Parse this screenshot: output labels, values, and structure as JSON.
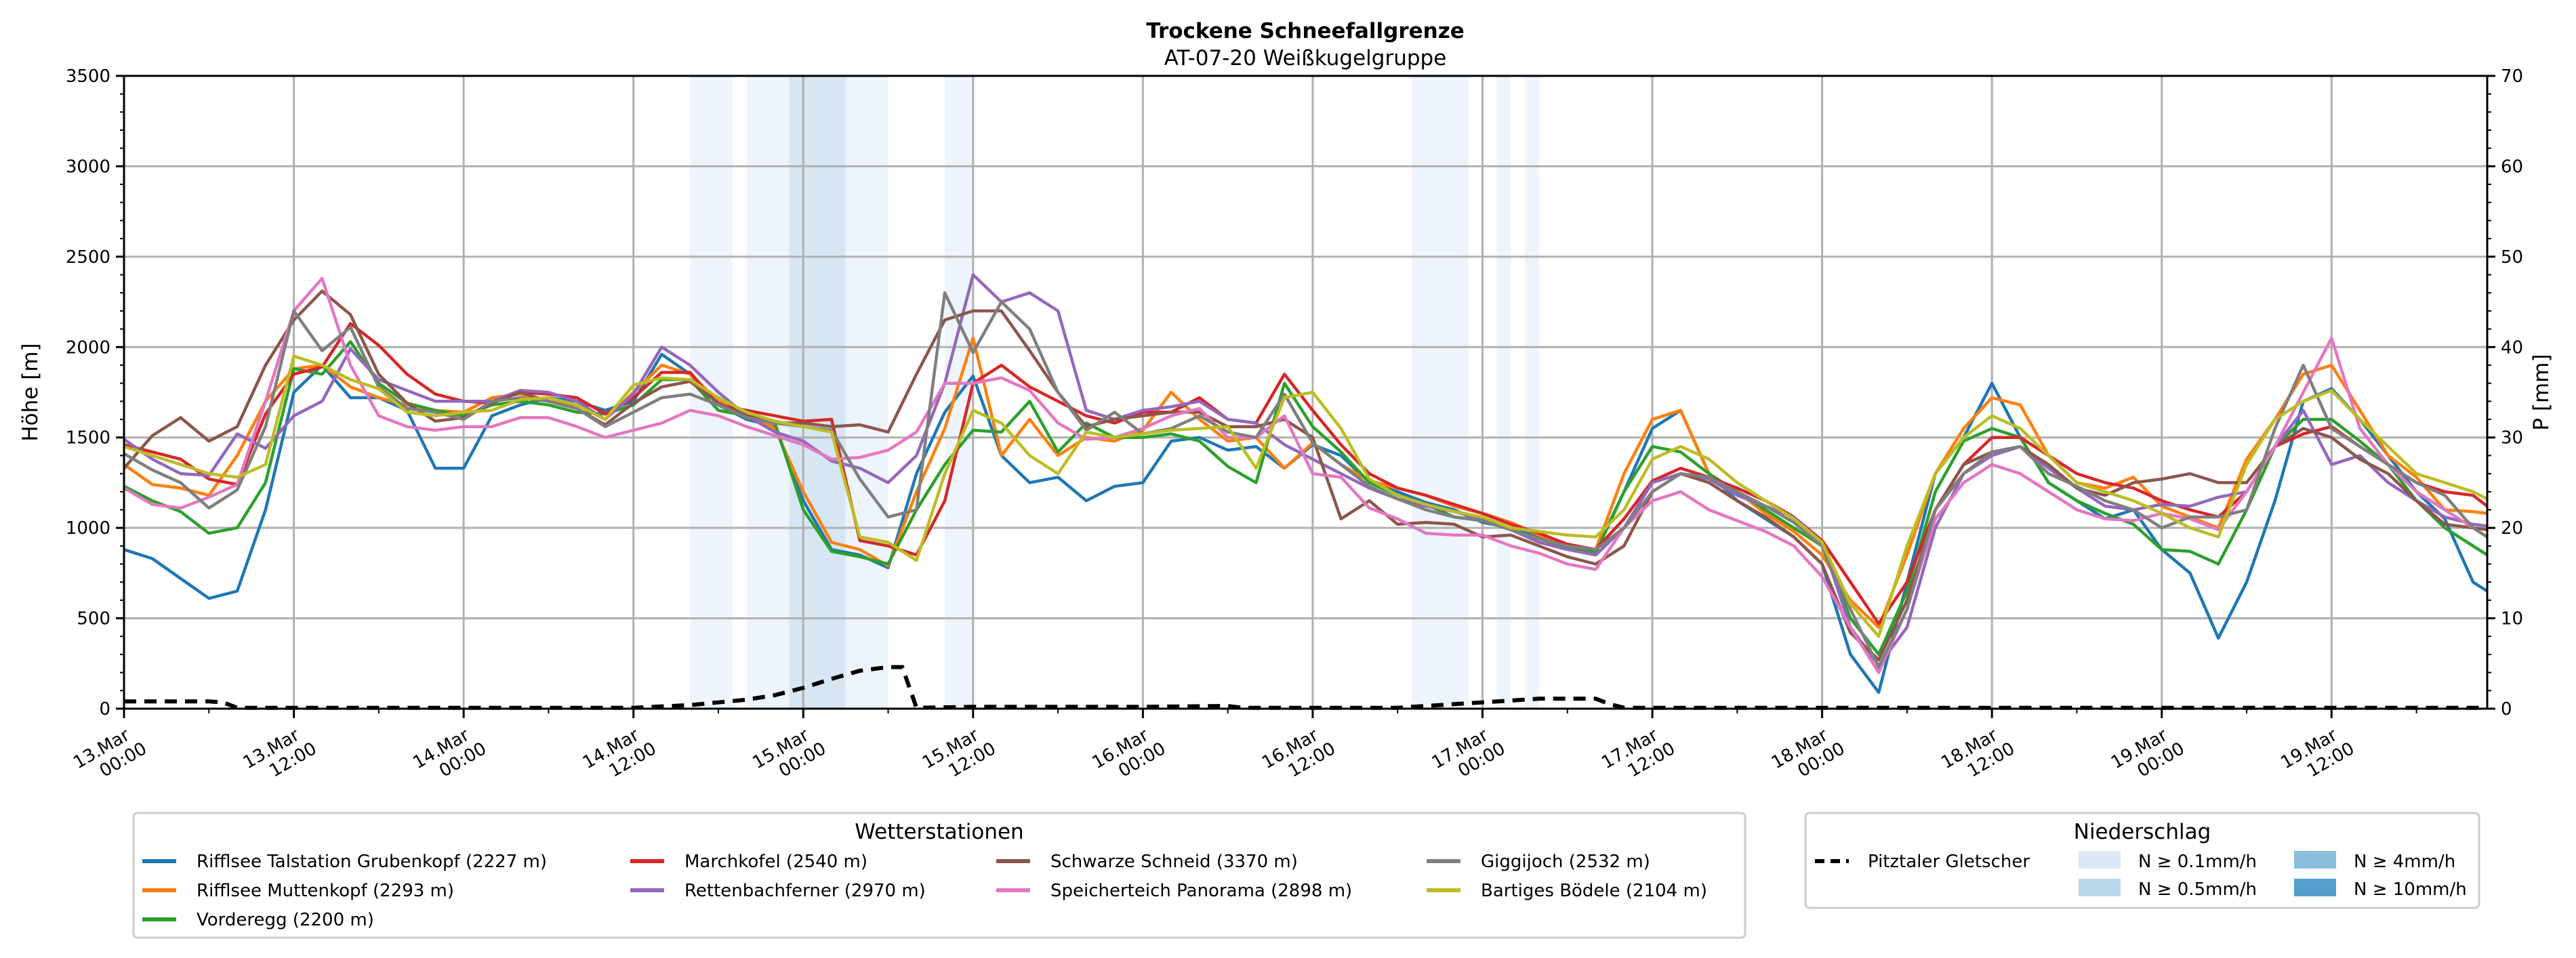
{
  "chart_data": {
    "type": "line",
    "title": "Trockene Schneefallgrenze",
    "subtitle": "AT-07-20 Weißkugelgruppe",
    "ylabel": "Höhe [m]",
    "y2label": "P [mm]",
    "ylim": [
      0,
      3500
    ],
    "y2lim": [
      0,
      70
    ],
    "yticks": [
      "0",
      "500",
      "1000",
      "1500",
      "2000",
      "2500",
      "3000",
      "3500"
    ],
    "y2ticks": [
      "0",
      "10",
      "20",
      "30",
      "40",
      "50",
      "60",
      "70"
    ],
    "x_unit": "hours since 13.Mar 00:00",
    "xlim": [
      0,
      167
    ],
    "xticks": [
      {
        "h": 0,
        "line1": "13.Mar",
        "line2": "00:00"
      },
      {
        "h": 12,
        "line1": "13.Mar",
        "line2": "12:00"
      },
      {
        "h": 24,
        "line1": "14.Mar",
        "line2": "00:00"
      },
      {
        "h": 36,
        "line1": "14.Mar",
        "line2": "12:00"
      },
      {
        "h": 48,
        "line1": "15.Mar",
        "line2": "00:00"
      },
      {
        "h": 60,
        "line1": "15.Mar",
        "line2": "12:00"
      },
      {
        "h": 72,
        "line1": "16.Mar",
        "line2": "00:00"
      },
      {
        "h": 84,
        "line1": "16.Mar",
        "line2": "12:00"
      },
      {
        "h": 96,
        "line1": "17.Mar",
        "line2": "00:00"
      },
      {
        "h": 108,
        "line1": "17.Mar",
        "line2": "12:00"
      },
      {
        "h": 120,
        "line1": "18.Mar",
        "line2": "00:00"
      },
      {
        "h": 132,
        "line1": "18.Mar",
        "line2": "12:00"
      },
      {
        "h": 144,
        "line1": "19.Mar",
        "line2": "00:00"
      },
      {
        "h": 156,
        "line1": "19.Mar",
        "line2": "12:00"
      }
    ],
    "grid": true,
    "x": [
      0,
      2,
      4,
      6,
      8,
      10,
      12,
      14,
      16,
      18,
      20,
      22,
      24,
      26,
      28,
      30,
      32,
      34,
      36,
      38,
      40,
      42,
      44,
      46,
      48,
      50,
      52,
      54,
      56,
      58,
      60,
      62,
      64,
      66,
      68,
      70,
      72,
      74,
      76,
      78,
      80,
      82,
      84,
      86,
      88,
      90,
      92,
      94,
      96,
      98,
      100,
      102,
      104,
      106,
      108,
      110,
      112,
      114,
      116,
      118,
      120,
      122,
      124,
      126,
      128,
      130,
      132,
      134,
      136,
      138,
      140,
      142,
      144,
      146,
      148,
      150,
      152,
      154,
      156,
      158,
      160,
      162,
      164,
      166,
      167
    ],
    "series": [
      {
        "name": "Rifflsee Talstation Grubenkopf (2227 m)",
        "color": "#1f77b4",
        "values": [
          880,
          830,
          720,
          610,
          650,
          1100,
          1750,
          1900,
          1720,
          1720,
          1650,
          1330,
          1330,
          1620,
          1680,
          1720,
          1700,
          1650,
          1700,
          1960,
          1850,
          1680,
          1600,
          1560,
          1150,
          880,
          850,
          780,
          1300,
          1640,
          1840,
          1400,
          1250,
          1280,
          1150,
          1230,
          1250,
          1480,
          1500,
          1430,
          1450,
          1330,
          1460,
          1400,
          1250,
          1200,
          1140,
          1100,
          1030,
          1000,
          950,
          900,
          870,
          1200,
          1550,
          1650,
          1300,
          1150,
          1050,
          950,
          800,
          300,
          90,
          700,
          1300,
          1500,
          1800,
          1500,
          1250,
          1150,
          1050,
          1100,
          880,
          750,
          390,
          700,
          1150,
          1700,
          1770,
          1600,
          1400,
          1200,
          1050,
          700,
          650,
          720
        ]
      },
      {
        "name": "Rifflsee Muttenkopf (2293 m)",
        "color": "#ff7f0e",
        "values": [
          1350,
          1240,
          1220,
          1180,
          1400,
          1700,
          1880,
          1900,
          1780,
          1720,
          1680,
          1650,
          1640,
          1720,
          1740,
          1700,
          1680,
          1600,
          1750,
          1900,
          1850,
          1700,
          1640,
          1550,
          1200,
          920,
          880,
          790,
          1200,
          1550,
          2050,
          1400,
          1600,
          1400,
          1500,
          1480,
          1540,
          1750,
          1600,
          1480,
          1500,
          1330,
          1470,
          1350,
          1260,
          1220,
          1180,
          1120,
          1080,
          1030,
          960,
          910,
          880,
          1300,
          1600,
          1650,
          1300,
          1200,
          1080,
          980,
          850,
          600,
          450,
          850,
          1300,
          1550,
          1720,
          1680,
          1400,
          1250,
          1220,
          1280,
          1120,
          1060,
          1000,
          1380,
          1600,
          1850,
          1900,
          1650,
          1400,
          1280,
          1100,
          1090,
          1080,
          1050
        ]
      },
      {
        "name": "Vorderegg (2200 m)",
        "color": "#2ca02c",
        "values": [
          1230,
          1150,
          1090,
          970,
          1000,
          1250,
          1880,
          1850,
          2030,
          1800,
          1690,
          1650,
          1620,
          1680,
          1700,
          1680,
          1640,
          1630,
          1680,
          1820,
          1820,
          1650,
          1620,
          1580,
          1100,
          870,
          840,
          800,
          1100,
          1350,
          1540,
          1530,
          1700,
          1420,
          1580,
          1500,
          1500,
          1520,
          1480,
          1340,
          1250,
          1800,
          1560,
          1420,
          1250,
          1180,
          1130,
          1060,
          1040,
          990,
          940,
          890,
          860,
          1200,
          1450,
          1420,
          1300,
          1200,
          1100,
          1000,
          900,
          500,
          300,
          650,
          1200,
          1480,
          1550,
          1500,
          1250,
          1150,
          1080,
          1020,
          880,
          870,
          800,
          1100,
          1450,
          1600,
          1600,
          1480,
          1350,
          1150,
          1000,
          900,
          850,
          840
        ]
      },
      {
        "name": "Marchkofel (2540 m)",
        "color": "#d62728",
        "values": [
          1460,
          1420,
          1380,
          1270,
          1240,
          1630,
          1850,
          1890,
          2130,
          2010,
          1850,
          1740,
          1700,
          1690,
          1750,
          1740,
          1720,
          1630,
          1720,
          1860,
          1860,
          1680,
          1650,
          1620,
          1590,
          1600,
          930,
          900,
          850,
          1150,
          1800,
          1900,
          1780,
          1700,
          1620,
          1580,
          1640,
          1640,
          1720,
          1600,
          1580,
          1850,
          1650,
          1460,
          1300,
          1220,
          1180,
          1130,
          1080,
          1020,
          970,
          910,
          880,
          1050,
          1260,
          1330,
          1280,
          1220,
          1150,
          1060,
          930,
          700,
          470,
          700,
          1100,
          1350,
          1500,
          1500,
          1400,
          1300,
          1250,
          1220,
          1150,
          1100,
          1060,
          1200,
          1450,
          1520,
          1560,
          1450,
          1350,
          1250,
          1200,
          1180,
          1120,
          1080
        ]
      },
      {
        "name": "Rettenbachferner (2970 m)",
        "color": "#9467bd",
        "values": [
          1490,
          1380,
          1300,
          1290,
          1520,
          1440,
          1620,
          1700,
          1990,
          1820,
          1760,
          1700,
          1700,
          1700,
          1760,
          1750,
          1700,
          1600,
          1740,
          2000,
          1900,
          1750,
          1620,
          1530,
          1480,
          1370,
          1330,
          1250,
          1400,
          1800,
          2400,
          2250,
          2300,
          2200,
          1650,
          1600,
          1650,
          1670,
          1700,
          1600,
          1580,
          1460,
          1380,
          1300,
          1220,
          1160,
          1120,
          1090,
          1050,
          990,
          920,
          880,
          850,
          1000,
          1250,
          1300,
          1270,
          1180,
          1120,
          1060,
          920,
          450,
          240,
          450,
          1000,
          1300,
          1400,
          1450,
          1330,
          1220,
          1120,
          1100,
          1130,
          1120,
          1170,
          1200,
          1450,
          1650,
          1350,
          1400,
          1250,
          1150,
          1060,
          1020,
          1010,
          990
        ]
      },
      {
        "name": "Schwarze Schneid (3370 m)",
        "color": "#8c564b",
        "values": [
          1330,
          1510,
          1610,
          1480,
          1560,
          1900,
          2150,
          2310,
          2180,
          1850,
          1690,
          1590,
          1610,
          1690,
          1750,
          1700,
          1660,
          1570,
          1690,
          1780,
          1810,
          1690,
          1620,
          1580,
          1580,
          1560,
          1570,
          1530,
          1850,
          2150,
          2200,
          2200,
          1980,
          1750,
          1560,
          1600,
          1620,
          1640,
          1640,
          1560,
          1560,
          1600,
          1500,
          1050,
          1150,
          1020,
          1030,
          1020,
          950,
          960,
          900,
          840,
          800,
          900,
          1200,
          1300,
          1250,
          1150,
          1060,
          950,
          800,
          420,
          270,
          600,
          1100,
          1350,
          1420,
          1450,
          1350,
          1220,
          1180,
          1250,
          1270,
          1300,
          1250,
          1250,
          1450,
          1550,
          1500,
          1380,
          1300,
          1150,
          1020,
          1000,
          990,
          980
        ]
      },
      {
        "name": "Speicherteich Panorama (2898 m)",
        "color": "#e377c2",
        "values": [
          1220,
          1130,
          1110,
          1170,
          1240,
          1700,
          2200,
          2380,
          1900,
          1620,
          1560,
          1540,
          1560,
          1560,
          1610,
          1610,
          1560,
          1500,
          1540,
          1580,
          1650,
          1620,
          1560,
          1510,
          1460,
          1380,
          1390,
          1430,
          1530,
          1800,
          1800,
          1830,
          1760,
          1580,
          1490,
          1500,
          1550,
          1620,
          1660,
          1500,
          1500,
          1620,
          1300,
          1280,
          1110,
          1050,
          970,
          960,
          960,
          900,
          860,
          800,
          770,
          1000,
          1150,
          1200,
          1100,
          1040,
          980,
          900,
          730,
          450,
          200,
          550,
          1050,
          1250,
          1350,
          1300,
          1200,
          1100,
          1050,
          1040,
          1080,
          1050,
          990,
          1200,
          1450,
          1750,
          2050,
          1550,
          1350,
          1200,
          1100,
          1000,
          950,
          900
        ]
      },
      {
        "name": "Giggijoch (2532 m)",
        "color": "#7f7f7f",
        "values": [
          1410,
          1320,
          1250,
          1110,
          1210,
          1560,
          2200,
          1980,
          2110,
          1780,
          1660,
          1640,
          1600,
          1700,
          1720,
          1700,
          1660,
          1560,
          1640,
          1720,
          1740,
          1680,
          1610,
          1580,
          1560,
          1540,
          1270,
          1060,
          1100,
          2300,
          1970,
          2250,
          2100,
          1750,
          1540,
          1640,
          1520,
          1550,
          1620,
          1530,
          1500,
          1740,
          1470,
          1350,
          1230,
          1160,
          1100,
          1060,
          1040,
          990,
          940,
          900,
          880,
          1000,
          1200,
          1300,
          1280,
          1200,
          1120,
          1030,
          900,
          550,
          230,
          550,
          1100,
          1300,
          1420,
          1450,
          1300,
          1230,
          1150,
          1100,
          1000,
          1060,
          1060,
          1100,
          1550,
          1900,
          1550,
          1450,
          1350,
          1250,
          1180,
          1000,
          950,
          920
        ]
      },
      {
        "name": "Bartiges Bödele (2104 m)",
        "color": "#bcbd22",
        "values": [
          1450,
          1400,
          1350,
          1300,
          1280,
          1350,
          1950,
          1900,
          1820,
          1770,
          1640,
          1620,
          1640,
          1650,
          1710,
          1720,
          1680,
          1600,
          1790,
          1830,
          1820,
          1720,
          1640,
          1590,
          1560,
          1530,
          950,
          920,
          820,
          1300,
          1650,
          1580,
          1400,
          1300,
          1530,
          1500,
          1520,
          1540,
          1550,
          1560,
          1330,
          1720,
          1750,
          1550,
          1270,
          1180,
          1130,
          1090,
          1060,
          1000,
          980,
          960,
          950,
          1100,
          1380,
          1450,
          1380,
          1250,
          1150,
          1050,
          920,
          580,
          400,
          900,
          1300,
          1500,
          1620,
          1550,
          1400,
          1250,
          1200,
          1150,
          1080,
          1000,
          950,
          1350,
          1600,
          1700,
          1760,
          1600,
          1450,
          1300,
          1250,
          1200,
          1160,
          1120
        ]
      }
    ],
    "precip_series": {
      "name": "Pitztaler Gletscher",
      "style": "dashed",
      "color": "#000000",
      "axis": "right",
      "x": [
        0,
        6,
        7,
        8,
        12,
        24,
        36,
        40,
        42,
        44,
        46,
        48,
        50,
        52,
        54,
        55,
        56,
        60,
        72,
        78,
        79,
        84,
        90,
        94,
        96,
        98,
        100,
        102,
        104,
        105,
        106,
        167
      ],
      "values": [
        0.8,
        0.8,
        0.7,
        0.1,
        0.1,
        0.1,
        0.1,
        0.4,
        0.7,
        1.0,
        1.5,
        2.3,
        3.3,
        4.2,
        4.6,
        4.6,
        0.1,
        0.2,
        0.2,
        0.3,
        0.1,
        0.1,
        0.1,
        0.5,
        0.7,
        0.9,
        1.1,
        1.1,
        1.1,
        0.5,
        0.1,
        0.1
      ]
    },
    "precip_bands": [
      {
        "start": 40,
        "end": 43,
        "level": "N ≥ 0.1mm/h"
      },
      {
        "start": 44,
        "end": 47,
        "level": "N ≥ 0.1mm/h"
      },
      {
        "start": 47,
        "end": 51,
        "level": "N ≥ 0.5mm/h"
      },
      {
        "start": 51,
        "end": 54,
        "level": "N ≥ 0.1mm/h"
      },
      {
        "start": 58,
        "end": 60,
        "level": "N ≥ 0.1mm/h"
      },
      {
        "start": 91,
        "end": 95,
        "level": "N ≥ 0.1mm/h"
      },
      {
        "start": 97,
        "end": 98,
        "level": "N ≥ 0.1mm/h"
      },
      {
        "start": 99,
        "end": 100,
        "level": "N ≥ 0.1mm/h"
      }
    ],
    "legend_stations": {
      "title": "Wetterstationen",
      "placement": "bottom-center"
    },
    "legend_precip": {
      "title": "Niederschlag",
      "placement": "bottom-right",
      "line_label": "Pitztaler Gletscher",
      "levels": [
        {
          "label": "N ≥ 0.1mm/h",
          "color": "#dbe9f6"
        },
        {
          "label": "N ≥ 0.5mm/h",
          "color": "#bad6eb"
        },
        {
          "label": "N ≥ 4mm/h",
          "color": "#89bedc"
        },
        {
          "label": "N ≥ 10mm/h",
          "color": "#539ecd"
        }
      ]
    }
  }
}
